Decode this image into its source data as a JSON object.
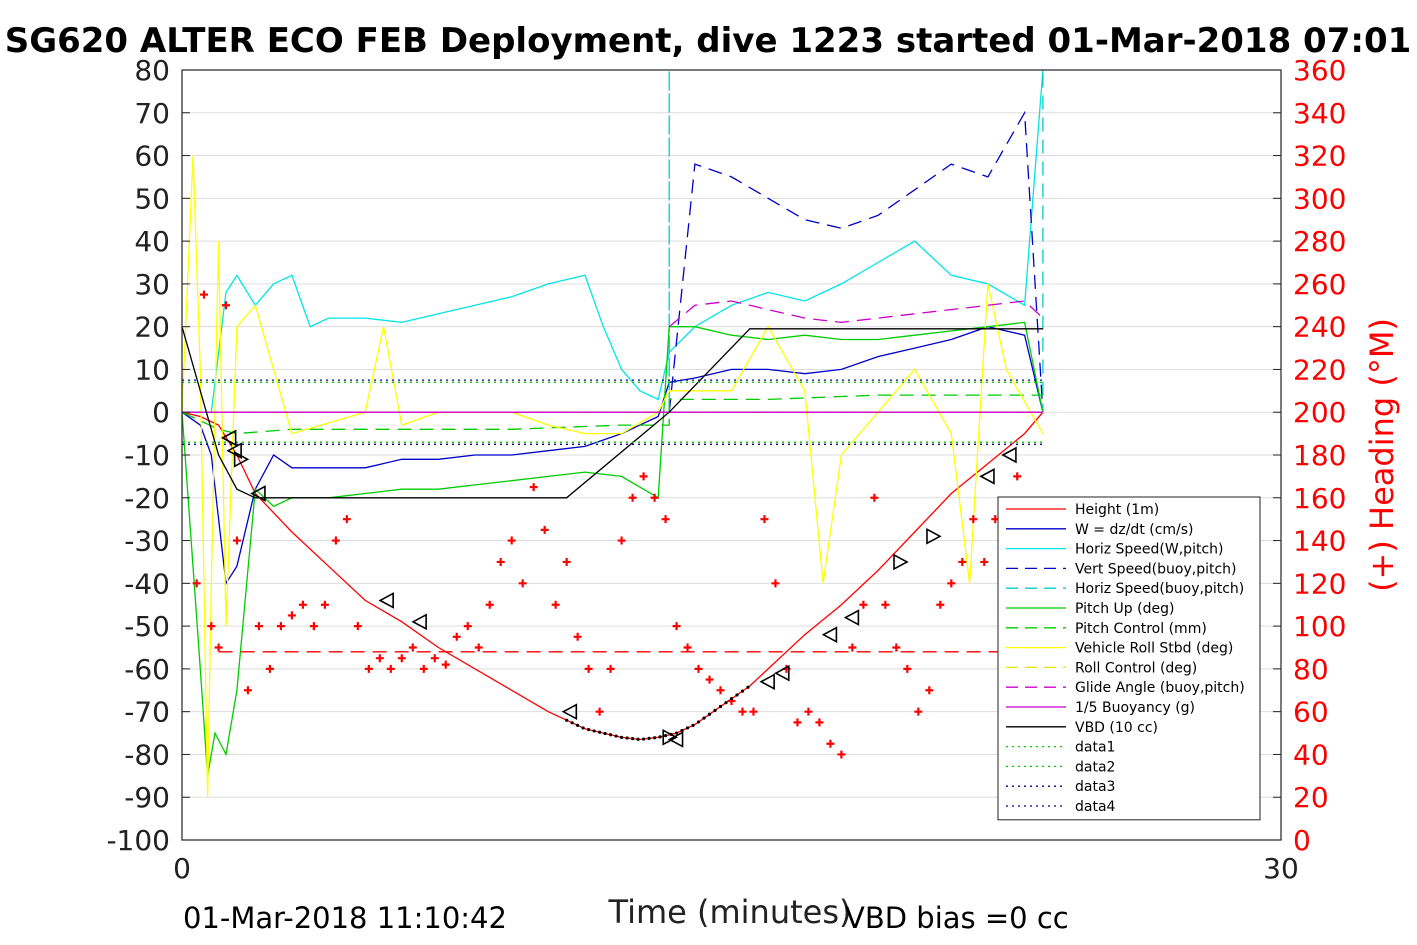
{
  "header": {
    "title": "SG620 ALTER ECO FEB Deployment, dive 1223 started 01-Mar-2018 07:01",
    "footer_left": "01-Mar-2018 11:10:42",
    "footer_right": "VBD bias =0 cc"
  },
  "chart_data": {
    "type": "line",
    "xlabel": "Time (minutes)",
    "ylabel": "",
    "y2label": "(+) Heading (°M)",
    "xlim": [
      0,
      30
    ],
    "ylim": [
      -100,
      80
    ],
    "y2lim": [
      0,
      360
    ],
    "x_ticks": [
      0,
      30
    ],
    "y_ticks": [
      80,
      70,
      60,
      50,
      40,
      30,
      20,
      10,
      0,
      -10,
      -20,
      -30,
      -40,
      -50,
      -60,
      -70,
      -80,
      -90,
      -100
    ],
    "y2_ticks": [
      360,
      340,
      320,
      300,
      280,
      260,
      240,
      220,
      200,
      180,
      160,
      140,
      120,
      100,
      80,
      60,
      40,
      20,
      0
    ],
    "grid": "horizontal",
    "legend_position": "bottom-right",
    "legend": [
      {
        "label": "Height (1m)",
        "color": "#ff0000",
        "dash": "solid"
      },
      {
        "label": "W = dz/dt (cm/s)",
        "color": "#0000cc",
        "dash": "solid"
      },
      {
        "label": "Horiz Speed(W,pitch)",
        "color": "#00e5e5",
        "dash": "solid"
      },
      {
        "label": "Vert Speed(buoy,pitch)",
        "color": "#0000cc",
        "dash": "dashed"
      },
      {
        "label": "Horiz Speed(buoy,pitch)",
        "color": "#00cccc",
        "dash": "dashed"
      },
      {
        "label": "Pitch Up (deg)",
        "color": "#00cc00",
        "dash": "solid"
      },
      {
        "label": "Pitch Control (mm)",
        "color": "#00cc00",
        "dash": "dashed"
      },
      {
        "label": "Vehicle Roll Stbd (deg)",
        "color": "#ffff00",
        "dash": "solid"
      },
      {
        "label": "Roll Control (deg)",
        "color": "#e5e500",
        "dash": "dashed"
      },
      {
        "label": "Glide Angle (buoy,pitch)",
        "color": "#cc00cc",
        "dash": "dashed"
      },
      {
        "label": "1/5 Buoyancy (g)",
        "color": "#cc00cc",
        "dash": "solid"
      },
      {
        "label": "VBD (10 cc)",
        "color": "#000000",
        "dash": "solid"
      },
      {
        "label": "data1",
        "color": "#00cc00",
        "dash": "dotted"
      },
      {
        "label": "data2",
        "color": "#00cc00",
        "dash": "dotted"
      },
      {
        "label": "data3",
        "color": "#000088",
        "dash": "dotted"
      },
      {
        "label": "data4",
        "color": "#000088",
        "dash": "dotted"
      }
    ],
    "series": [
      {
        "name": "Height (1m)",
        "color": "#ff0000",
        "dash": "solid",
        "x": [
          0,
          0.5,
          1,
          1.5,
          2,
          3,
          4,
          5,
          6,
          7,
          8,
          9,
          10,
          10.5,
          11,
          11.5,
          12,
          12.5,
          13,
          13.5,
          14,
          14.5,
          15,
          15.5,
          16,
          17,
          18,
          19,
          20,
          21,
          22,
          23,
          23.5
        ],
        "y": [
          0,
          -1,
          -3,
          -10,
          -19,
          -28,
          -36,
          -44,
          -49,
          -55,
          -60,
          -65,
          -70,
          -72,
          -74,
          -75,
          -76,
          -76.5,
          -76,
          -75,
          -73,
          -70,
          -67,
          -64,
          -60,
          -52,
          -45,
          -37,
          -28,
          -19,
          -12,
          -5,
          0
        ]
      },
      {
        "name": "W = dz/dt (cm/s)",
        "color": "#0000cc",
        "dash": "solid",
        "x": [
          0,
          0.5,
          0.8,
          1.0,
          1.2,
          1.5,
          2,
          2.5,
          3,
          4,
          5,
          6,
          7,
          8,
          9,
          10,
          11,
          12,
          13,
          13.3,
          14,
          15,
          16,
          17,
          18,
          19,
          20,
          21,
          22,
          23,
          23.5
        ],
        "y": [
          0,
          -3,
          -10,
          -25,
          -40,
          -36,
          -18,
          -10,
          -13,
          -13,
          -13,
          -11,
          -11,
          -10,
          -10,
          -9,
          -8,
          -5,
          -1,
          7,
          8,
          10,
          10,
          9,
          10,
          13,
          15,
          17,
          20,
          18,
          0
        ]
      },
      {
        "name": "Horiz Speed(W,pitch)",
        "color": "#00e5e5",
        "dash": "solid",
        "x": [
          0,
          0.8,
          1.2,
          1.5,
          2,
          2.5,
          3,
          3.5,
          4,
          5,
          6,
          7,
          8,
          9,
          10,
          11,
          11.5,
          12,
          12.5,
          13,
          13.3,
          14,
          15,
          16,
          17,
          18,
          19,
          20,
          21,
          22,
          23,
          23.5
        ],
        "y": [
          0,
          0,
          28,
          32,
          25,
          30,
          32,
          20,
          22,
          22,
          21,
          23,
          25,
          27,
          30,
          32,
          20,
          10,
          5,
          3,
          14,
          20,
          25,
          28,
          26,
          30,
          35,
          40,
          32,
          30,
          25,
          80
        ]
      },
      {
        "name": "Vert Speed(buoy,pitch)",
        "color": "#0000cc",
        "dash": "dashed",
        "x": [
          13.3,
          14,
          15,
          16,
          17,
          18,
          19,
          20,
          21,
          22,
          23,
          23.5
        ],
        "y": [
          0,
          58,
          55,
          50,
          45,
          43,
          46,
          52,
          58,
          55,
          70,
          0
        ]
      },
      {
        "name": "Horiz Speed(buoy,pitch)",
        "color": "#00cccc",
        "dash": "dashed",
        "x": [
          0,
          13.3,
          13.3,
          13.3,
          23.5,
          23.5
        ],
        "y": [
          0,
          0,
          80,
          0,
          0,
          80
        ]
      },
      {
        "name": "Pitch Up (deg)",
        "color": "#00cc00",
        "dash": "solid",
        "x": [
          0,
          0.5,
          0.7,
          0.9,
          1.2,
          1.5,
          2,
          2.5,
          3,
          4,
          5,
          6,
          7,
          8,
          9,
          10,
          11,
          12,
          13,
          13.3,
          14,
          15,
          16,
          17,
          18,
          19,
          20,
          21,
          22,
          23,
          23.5
        ],
        "y": [
          0,
          -60,
          -85,
          -75,
          -80,
          -65,
          -18,
          -22,
          -20,
          -20,
          -19,
          -18,
          -18,
          -17,
          -16,
          -15,
          -14,
          -15,
          -20,
          20,
          20,
          18,
          17,
          18,
          17,
          17,
          18,
          19,
          20,
          21,
          0
        ]
      },
      {
        "name": "Pitch Control (mm)",
        "color": "#00cc00",
        "dash": "dashed",
        "x": [
          0,
          1,
          1.5,
          3,
          6,
          9,
          12,
          13.3,
          13.3,
          16,
          19,
          22,
          23.5
        ],
        "y": [
          0,
          -4,
          -5,
          -4,
          -4,
          -4,
          -3,
          -3,
          3,
          3,
          4,
          4,
          4
        ]
      },
      {
        "name": "Vehicle Roll Stbd (deg)",
        "color": "#ffff00",
        "dash": "solid",
        "x": [
          0,
          0.3,
          0.5,
          0.7,
          0.8,
          1,
          1.2,
          1.5,
          2,
          3,
          5,
          5.5,
          6,
          7,
          8,
          9,
          10,
          11,
          12,
          13,
          13.3,
          14,
          15,
          16,
          17,
          17.5,
          18,
          19,
          20,
          21,
          21.5,
          22,
          22.5,
          23.5
        ],
        "y": [
          0,
          60,
          10,
          -90,
          -40,
          40,
          -50,
          20,
          25,
          -5,
          0,
          20,
          -3,
          0,
          0,
          0,
          -3,
          -5,
          -5,
          0,
          5,
          5,
          5,
          20,
          5,
          -40,
          -10,
          0,
          10,
          -5,
          -40,
          30,
          10,
          -5
        ]
      },
      {
        "name": "Roll Control (deg)",
        "color": "#e5e500",
        "dash": "dashed",
        "x": [
          0,
          23.5
        ],
        "y": [
          0,
          0
        ]
      },
      {
        "name": "Glide Angle (buoy,pitch)",
        "color": "#cc00cc",
        "dash": "dashed",
        "x": [
          13.3,
          14,
          15,
          16,
          17,
          18,
          19,
          20,
          21,
          22,
          23,
          23.5
        ],
        "y": [
          20,
          25,
          26,
          24,
          22,
          21,
          22,
          23,
          24,
          25,
          26,
          22
        ]
      },
      {
        "name": "1/5 Buoyancy (g)",
        "color": "#cc00cc",
        "dash": "solid",
        "x": [
          0,
          23.5
        ],
        "y": [
          0,
          0
        ]
      },
      {
        "name": "VBD (10 cc)",
        "color": "#000000",
        "dash": "solid",
        "x": [
          0,
          0.5,
          1,
          1.5,
          2,
          10.5,
          13.3,
          15.5,
          23.5
        ],
        "y": [
          20,
          5,
          -10,
          -18,
          -20,
          -20,
          0,
          19.5,
          19.5
        ]
      },
      {
        "name": "data1",
        "color": "#00cc00",
        "dash": "dotted",
        "x": [
          0,
          23.5
        ],
        "y": [
          7,
          7
        ]
      },
      {
        "name": "data2",
        "color": "#00cc00",
        "dash": "dotted",
        "x": [
          0,
          23.5
        ],
        "y": [
          -7,
          -7
        ]
      },
      {
        "name": "data3",
        "color": "#000088",
        "dash": "dotted",
        "x": [
          0,
          23.5
        ],
        "y": [
          7.5,
          7.5
        ]
      },
      {
        "name": "data4",
        "color": "#000088",
        "dash": "dotted",
        "x": [
          0,
          23.5
        ],
        "y": [
          -7.5,
          -7.5
        ]
      },
      {
        "name": "Heading",
        "color": "#ff0000",
        "marker": "+",
        "axis": "right",
        "x": [
          0.4,
          0.6,
          0.8,
          1.0,
          1.2,
          1.5,
          1.8,
          2.1,
          2.4,
          2.7,
          3.0,
          3.3,
          3.6,
          3.9,
          4.2,
          4.5,
          4.8,
          5.1,
          5.4,
          5.7,
          6.0,
          6.3,
          6.6,
          6.9,
          7.2,
          7.5,
          7.8,
          8.1,
          8.4,
          8.7,
          9.0,
          9.3,
          9.6,
          9.9,
          10.2,
          10.5,
          10.8,
          11.1,
          11.4,
          11.7,
          12.0,
          12.3,
          12.6,
          12.9,
          13.2,
          13.5,
          13.8,
          14.1,
          14.4,
          14.7,
          15.0,
          15.3,
          15.6,
          15.9,
          16.2,
          16.5,
          16.8,
          17.1,
          17.4,
          17.7,
          18.0,
          18.3,
          18.6,
          18.9,
          19.2,
          19.5,
          19.8,
          20.1,
          20.4,
          20.7,
          21.0,
          21.3,
          21.6,
          21.9,
          22.2,
          22.5,
          22.8,
          23.1,
          23.4
        ],
        "y": [
          120,
          255,
          100,
          90,
          250,
          140,
          70,
          100,
          80,
          100,
          105,
          110,
          100,
          110,
          140,
          150,
          100,
          80,
          85,
          80,
          85,
          90,
          80,
          85,
          82,
          95,
          100,
          90,
          110,
          130,
          140,
          120,
          165,
          145,
          110,
          130,
          95,
          80,
          60,
          80,
          140,
          160,
          170,
          160,
          150,
          100,
          90,
          80,
          75,
          70,
          65,
          60,
          60,
          150,
          120,
          80,
          55,
          60,
          55,
          45,
          40,
          90,
          110,
          160,
          110,
          90,
          80,
          60,
          70,
          110,
          120,
          130,
          150,
          130,
          150,
          155,
          170,
          120,
          100
        ]
      },
      {
        "name": "Heading mean",
        "color": "#ff0000",
        "dash": "dashed",
        "axis": "right",
        "x": [
          1,
          23.5
        ],
        "y": [
          88,
          88
        ]
      }
    ],
    "markers_triangle": {
      "color": "#000000",
      "x": [
        1.3,
        1.45,
        1.6,
        2.1,
        5.6,
        6.5,
        10.6,
        13.3,
        13.5,
        16,
        16.4,
        17.7,
        18.3,
        19.6,
        20.5,
        22,
        22.6
      ],
      "y": [
        -6,
        -9,
        -11,
        -19,
        -44,
        -49,
        -70,
        -76,
        -76.5,
        -63,
        -61,
        -52,
        -48,
        -35,
        -29,
        -15,
        -10
      ],
      "dir": [
        "left",
        "left",
        "right",
        "left",
        "left",
        "left",
        "left",
        "right",
        "left",
        "left",
        "left",
        "left",
        "left",
        "right",
        "right",
        "left",
        "left"
      ]
    },
    "dotted_bottom": {
      "color": "#000000",
      "x_from": 10.5,
      "x_to": 15.5,
      "step": 0.15
    }
  }
}
